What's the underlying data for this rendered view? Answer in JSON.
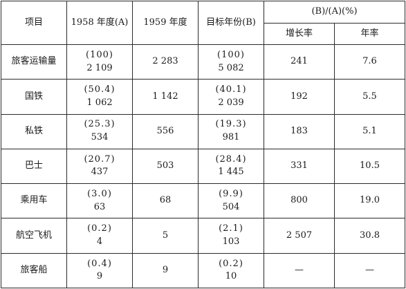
{
  "headers": {
    "item": "项目",
    "y1958": "1958 年度(A)",
    "y1959": "1959 年度",
    "target": "目标年份(B)",
    "ratio": "(B)/(A)(%)",
    "growth": "增长率",
    "annual": "年率"
  },
  "rows": [
    {
      "item": "旅客运输量",
      "a_share": "(100)",
      "a_value": "2 109",
      "y1959": "2 283",
      "b_share": "(100)",
      "b_value": "5 082",
      "growth": "241",
      "annual": "7.6"
    },
    {
      "item": "国铁",
      "a_share": "(50.4)",
      "a_value": "1 062",
      "y1959": "1 142",
      "b_share": "(40.1)",
      "b_value": "2 039",
      "growth": "192",
      "annual": "5.5"
    },
    {
      "item": "私铁",
      "a_share": "(25.3)",
      "a_value": "534",
      "y1959": "556",
      "b_share": "(19.3)",
      "b_value": "981",
      "growth": "183",
      "annual": "5.1"
    },
    {
      "item": "巴士",
      "a_share": "(20.7)",
      "a_value": "437",
      "y1959": "503",
      "b_share": "(28.4)",
      "b_value": "1 445",
      "growth": "331",
      "annual": "10.5"
    },
    {
      "item": "乘用车",
      "a_share": "(3.0)",
      "a_value": "63",
      "y1959": "68",
      "b_share": "(9.9)",
      "b_value": "504",
      "growth": "800",
      "annual": "19.0"
    },
    {
      "item": "航空飞机",
      "a_share": "(0.2)",
      "a_value": "4",
      "y1959": "5",
      "b_share": "(2.1)",
      "b_value": "103",
      "growth": "2 507",
      "annual": "30.8"
    },
    {
      "item": "旅客船",
      "a_share": "(0.4)",
      "a_value": "9",
      "y1959": "9",
      "b_share": "(0.2)",
      "b_value": "10",
      "growth": "—",
      "annual": "—"
    }
  ]
}
